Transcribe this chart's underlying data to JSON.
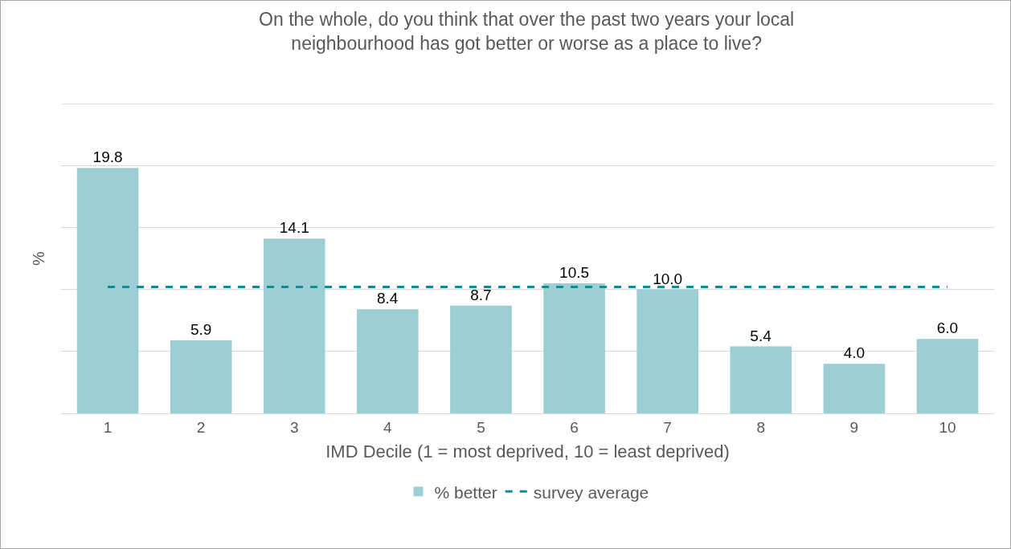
{
  "chart_data": {
    "type": "bar",
    "title": "On the whole, do you think that over the past two years your local\nneighbourhood has got better or worse as a place to live?",
    "xlabel": "IMD Decile (1 = most deprived, 10 = least deprived)",
    "ylabel": "%",
    "categories": [
      "1",
      "2",
      "3",
      "4",
      "5",
      "6",
      "7",
      "8",
      "9",
      "10"
    ],
    "series": [
      {
        "name": "% better",
        "color": "#9bcfd3",
        "values": [
          19.8,
          5.9,
          14.1,
          8.4,
          8.7,
          10.5,
          10.0,
          5.4,
          4.0,
          6.0
        ],
        "value_labels": [
          "19.8",
          "5.9",
          "14.1",
          "8.4",
          "8.7",
          "10.5",
          "10.0",
          "5.4",
          "4.0",
          "6.0"
        ]
      },
      {
        "name": "survey average",
        "type": "line",
        "color": "#138a94",
        "line_style": "dashed",
        "marker": "none",
        "values": [
          10.2,
          10.2,
          10.2,
          10.2,
          10.2,
          10.2,
          10.2,
          10.2,
          10.2,
          10.2
        ]
      }
    ],
    "ylim": [
      0,
      25
    ],
    "yticks": [
      {
        "value": 0,
        "label": null
      },
      {
        "value": 5,
        "label": null
      },
      {
        "value": 10,
        "label": null
      },
      {
        "value": 15,
        "label": null
      },
      {
        "value": 20,
        "label": null
      },
      {
        "value": 25,
        "label": null
      }
    ],
    "grid": "y",
    "legend": "bottom"
  }
}
